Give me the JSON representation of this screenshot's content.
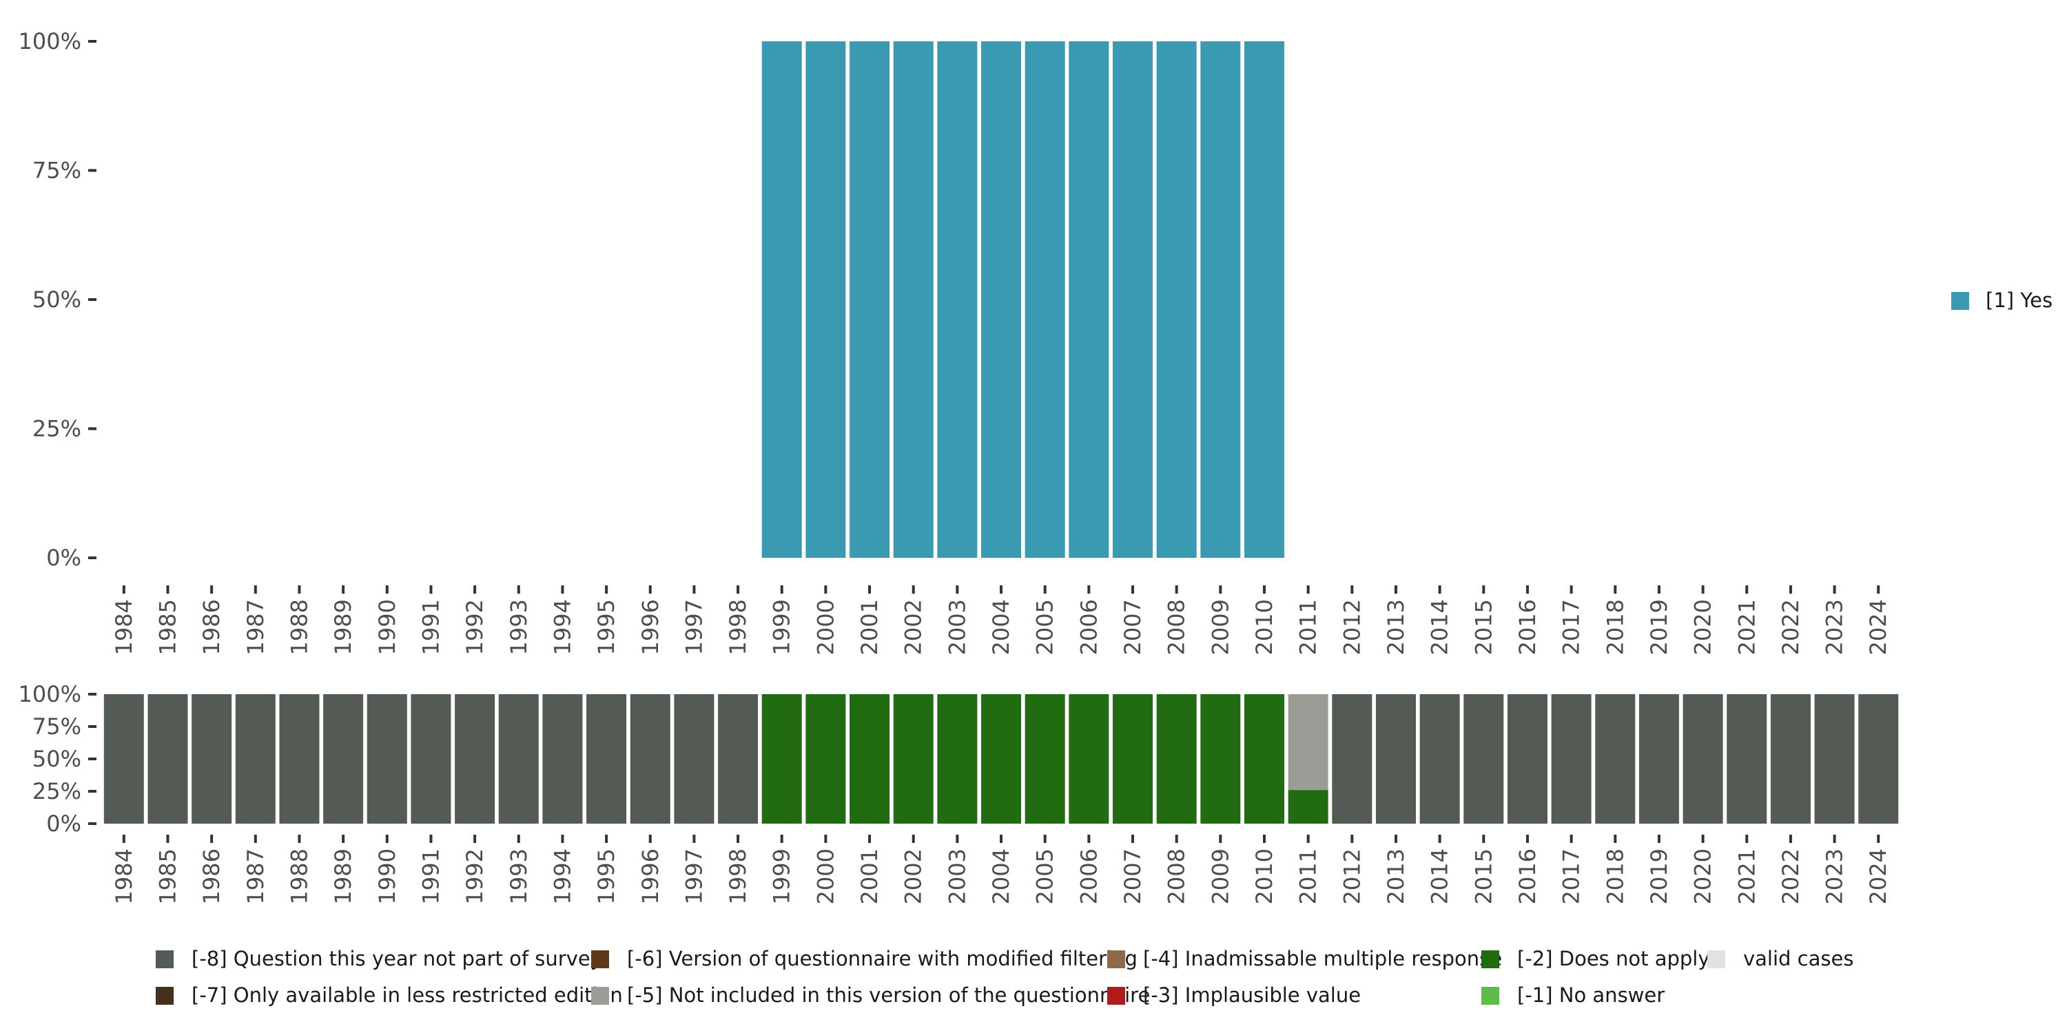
{
  "chart_data": [
    {
      "type": "bar",
      "stacked": true,
      "ylim": [
        0,
        100
      ],
      "y_ticks": [
        "0%",
        "25%",
        "50%",
        "75%",
        "100%"
      ],
      "categories": [
        "1984",
        "1985",
        "1986",
        "1987",
        "1988",
        "1989",
        "1990",
        "1991",
        "1992",
        "1993",
        "1994",
        "1995",
        "1996",
        "1997",
        "1998",
        "1999",
        "2000",
        "2001",
        "2002",
        "2003",
        "2004",
        "2005",
        "2006",
        "2007",
        "2008",
        "2009",
        "2010",
        "2011",
        "2012",
        "2013",
        "2014",
        "2015",
        "2016",
        "2017",
        "2018",
        "2019",
        "2020",
        "2021",
        "2022",
        "2023",
        "2024"
      ],
      "series": [
        {
          "name": "[1] Yes",
          "color": "#3a9ab2",
          "values": [
            0,
            0,
            0,
            0,
            0,
            0,
            0,
            0,
            0,
            0,
            0,
            0,
            0,
            0,
            0,
            100,
            100,
            100,
            100,
            100,
            100,
            100,
            100,
            100,
            100,
            100,
            100,
            0,
            0,
            0,
            0,
            0,
            0,
            0,
            0,
            0,
            0,
            0,
            0,
            0,
            0
          ]
        }
      ],
      "legend": [
        {
          "label": "[1] Yes",
          "color": "#3a9ab2"
        }
      ],
      "legend_position": "right"
    },
    {
      "type": "bar",
      "stacked": true,
      "ylim": [
        0,
        100
      ],
      "y_ticks": [
        "0%",
        "25%",
        "50%",
        "75%",
        "100%"
      ],
      "categories": [
        "1984",
        "1985",
        "1986",
        "1987",
        "1988",
        "1989",
        "1990",
        "1991",
        "1992",
        "1993",
        "1994",
        "1995",
        "1996",
        "1997",
        "1998",
        "1999",
        "2000",
        "2001",
        "2002",
        "2003",
        "2004",
        "2005",
        "2006",
        "2007",
        "2008",
        "2009",
        "2010",
        "2011",
        "2012",
        "2013",
        "2014",
        "2015",
        "2016",
        "2017",
        "2018",
        "2019",
        "2020",
        "2021",
        "2022",
        "2023",
        "2024"
      ],
      "series": [
        {
          "name": "[-2] Does not apply",
          "color": "#216b11",
          "values": [
            0,
            0,
            0,
            0,
            0,
            0,
            0,
            0,
            0,
            0,
            0,
            0,
            0,
            0,
            0,
            100,
            100,
            100,
            100,
            100,
            100,
            100,
            100,
            100,
            100,
            100,
            100,
            26,
            0,
            0,
            0,
            0,
            0,
            0,
            0,
            0,
            0,
            0,
            0,
            0,
            0
          ]
        },
        {
          "name": "[-5] Not included in this version of the questionnaire",
          "color": "#9a9c95",
          "values": [
            0,
            0,
            0,
            0,
            0,
            0,
            0,
            0,
            0,
            0,
            0,
            0,
            0,
            0,
            0,
            0,
            0,
            0,
            0,
            0,
            0,
            0,
            0,
            0,
            0,
            0,
            0,
            74,
            0,
            0,
            0,
            0,
            0,
            0,
            0,
            0,
            0,
            0,
            0,
            0,
            0
          ]
        },
        {
          "name": "[-8] Question this year not part of survey",
          "color": "#545a54",
          "values": [
            100,
            100,
            100,
            100,
            100,
            100,
            100,
            100,
            100,
            100,
            100,
            100,
            100,
            100,
            100,
            0,
            0,
            0,
            0,
            0,
            0,
            0,
            0,
            0,
            0,
            0,
            0,
            0,
            100,
            100,
            100,
            100,
            100,
            100,
            100,
            100,
            100,
            100,
            100,
            100,
            100
          ]
        }
      ],
      "legend": [
        {
          "label": "[-8] Question this year not part of survey",
          "color": "#545a54"
        },
        {
          "label": "[-6] Version of questionnaire with modified filtering",
          "color": "#5c3818"
        },
        {
          "label": "[-4] Inadmissable multiple response",
          "color": "#8c6a4a"
        },
        {
          "label": "[-2] Does not apply",
          "color": "#216b11"
        },
        {
          "label": "valid cases",
          "color": "#e1e3e0"
        },
        {
          "label": "[-7] Only available in less restricted edition",
          "color": "#45301a"
        },
        {
          "label": "[-5] Not included in this version of the questionnaire",
          "color": "#9a9c95"
        },
        {
          "label": "[-3] Implausible value",
          "color": "#b01c1c"
        },
        {
          "label": "[-1] No answer",
          "color": "#5cbd4a"
        }
      ],
      "legend_position": "bottom"
    }
  ]
}
